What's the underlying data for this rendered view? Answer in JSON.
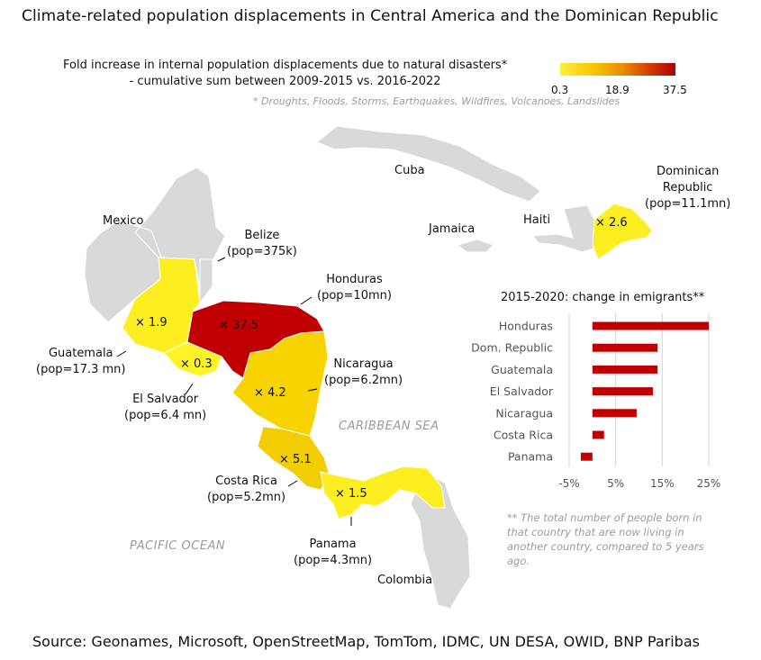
{
  "title": "Climate-related population displacements in Central America and the Dominican Republic",
  "subtitle_line1": "Fold increase in internal population displacements due to natural disasters*",
  "subtitle_line2": "- cumulative sum between 2009-2015  vs. 2016-2022",
  "footnote_disasters": "* Droughts, Floods, Storms, Earthquakes, Wildfires, Volcanoes, Landslides",
  "legend": {
    "min_label": "0.3",
    "mid_label": "18.9",
    "max_label": "37.5"
  },
  "colors": {
    "land": "#d9d9d9",
    "low": "#fde725",
    "mid": "#f2c300",
    "high": "#c00000",
    "bar": "#c00000"
  },
  "map_labels": {
    "mexico": "Mexico",
    "cuba": "Cuba",
    "jamaica": "Jamaica",
    "haiti": "Haiti",
    "colombia": "Colombia",
    "belize_name": "Belize",
    "belize_pop": "(pop=375k)",
    "honduras_name": "Honduras",
    "honduras_pop": "(pop=10mn)",
    "guatemala_name": "Guatemala",
    "guatemala_pop": "(pop=17.3 mn)",
    "elsalvador_name": "El Salvador",
    "elsalvador_pop": "(pop=6.4 mn)",
    "nicaragua_name": "Nicaragua",
    "nicaragua_pop": "(pop=6.2mn)",
    "costarica_name": "Costa Rica",
    "costarica_pop": "(pop=5.2mn)",
    "panama_name": "Panama",
    "panama_pop": "(pop=4.3mn)",
    "dr_name1": "Dominican",
    "dr_name2": "Republic",
    "dr_pop": "(pop=11.1mn)",
    "caribbean_sea": "CARIBBEAN SEA",
    "pacific_ocean": "PACIFIC OCEAN"
  },
  "fold_values": {
    "honduras": "× 37.5",
    "guatemala": "× 1.9",
    "elsalvador": "× 0.3",
    "nicaragua": "× 4.2",
    "costarica": "× 5.1",
    "panama": "× 1.5",
    "dominican": "× 2.6"
  },
  "chart_data": {
    "type": "bar",
    "orientation": "horizontal",
    "title": "2015-2020:  change in emigrants**",
    "categories": [
      "Honduras",
      "Dom. Republic",
      "Guatemala",
      "El Salvador",
      "Nicaragua",
      "Costa Rica",
      "Panama"
    ],
    "values": [
      25,
      14,
      14,
      13,
      9.5,
      2.5,
      -2.5
    ],
    "xlim": [
      -5,
      25
    ],
    "xticks": [
      -5,
      5,
      15,
      25
    ],
    "xtick_labels": [
      "-5%",
      "5%",
      "15%",
      "25%"
    ],
    "unit": "%",
    "grid": true
  },
  "footnote_emigrants": "** The total number of people born in that country that are now living in another country, compared to 5 years ago.",
  "source": "Source: Geonames, Microsoft, OpenStreetMap, TomTom, IDMC, UN DESA, OWID, BNP Paribas"
}
